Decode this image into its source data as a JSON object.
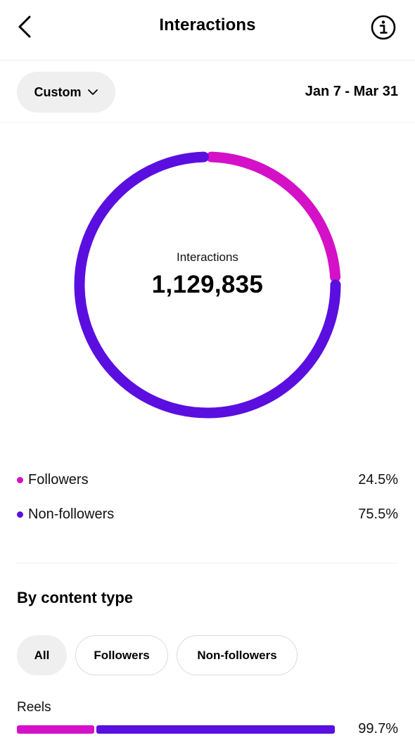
{
  "header": {
    "title": "Interactions",
    "back_icon": "chevron-left-icon",
    "info_icon": "info-circle-icon"
  },
  "filter": {
    "range_label": "Custom",
    "date_range": "Jan 7 - Mar 31"
  },
  "summary": {
    "label": "Interactions",
    "value": "1,129,835"
  },
  "colors": {
    "followers": "#d411c7",
    "non_followers": "#5a0fe0"
  },
  "chart_data": {
    "type": "pie",
    "categories": [
      "Followers",
      "Non-followers"
    ],
    "values": [
      24.5,
      75.5
    ],
    "title": "",
    "colors": [
      "#d411c7",
      "#5a0fe0"
    ]
  },
  "legend": [
    {
      "name": "Followers",
      "value": "24.5%"
    },
    {
      "name": "Non-followers",
      "value": "75.5%"
    }
  ],
  "content_type": {
    "title": "By content type",
    "tabs": [
      "All",
      "Followers",
      "Non-followers"
    ],
    "active_tab": "All",
    "rows": [
      {
        "label": "Reels",
        "value": "99.7%",
        "followers_share": 24.5,
        "non_followers_share": 75.5,
        "fill_fraction": 0.997
      }
    ]
  }
}
